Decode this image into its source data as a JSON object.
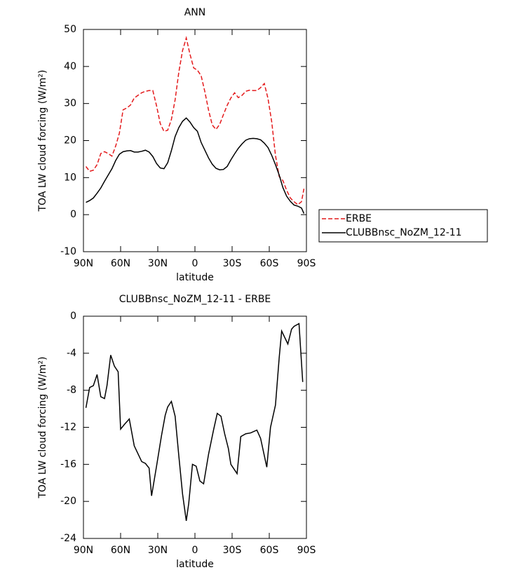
{
  "chart_data": [
    {
      "type": "line",
      "title": "ANN",
      "xlabel": "latitude",
      "ylabel": "TOA LW cloud forcing (W/m²)",
      "x": [
        88,
        85,
        82,
        79,
        76,
        73,
        70,
        67,
        64,
        61,
        58,
        55,
        52,
        49,
        46,
        43,
        40,
        37,
        34,
        31,
        28,
        25,
        22,
        19,
        16,
        13,
        10,
        7,
        4,
        1,
        -2,
        -5,
        -8,
        -11,
        -14,
        -17,
        -20,
        -23,
        -26,
        -29,
        -32,
        -35,
        -38,
        -41,
        -44,
        -47,
        -50,
        -53,
        -56,
        -59,
        -62,
        -65,
        -68,
        -71,
        -74,
        -77,
        -80,
        -83,
        -86,
        -88
      ],
      "series": [
        {
          "name": "ERBE",
          "color": "#e41a1c",
          "linestyle": "dashed",
          "values": [
            13,
            11.7,
            12,
            13.5,
            16.5,
            17,
            16.5,
            15.8,
            18.5,
            22,
            28.3,
            28.8,
            29.6,
            31.5,
            32.2,
            32.9,
            33.3,
            33.5,
            33.5,
            29.4,
            24.6,
            22.5,
            22.8,
            25.7,
            31,
            38.5,
            44.3,
            47.7,
            43.3,
            39.6,
            39,
            37.5,
            33.2,
            28.2,
            24.2,
            23,
            24.4,
            27,
            29.5,
            31.5,
            32.9,
            31.6,
            32.2,
            33.3,
            33.6,
            33.5,
            33.5,
            34.3,
            35.4,
            31.3,
            25,
            16,
            10.3,
            9.2,
            6.6,
            4.5,
            3.5,
            2.7,
            3.5,
            7
          ]
        },
        {
          "name": "CLUBBnsc_NoZM_12-11",
          "color": "#000000",
          "linestyle": "solid",
          "values": [
            3.3,
            3.8,
            4.5,
            5.8,
            7.2,
            9,
            10.7,
            12.4,
            14.6,
            16.3,
            17,
            17.2,
            17.3,
            16.9,
            16.9,
            17.1,
            17.4,
            16.9,
            15.7,
            13.8,
            12.6,
            12.4,
            14,
            17.3,
            21.1,
            23.5,
            25.2,
            26.1,
            25,
            23.5,
            22.5,
            19.5,
            17.4,
            15.3,
            13.6,
            12.5,
            12.1,
            12.2,
            13,
            14.8,
            16.4,
            17.9,
            19.1,
            20.1,
            20.5,
            20.6,
            20.5,
            20.2,
            19.3,
            18.1,
            16,
            13.5,
            10.7,
            7.3,
            5,
            3.6,
            2.6,
            2.3,
            1.8,
            0.3
          ]
        }
      ],
      "xlim": [
        90,
        -90
      ],
      "xticks": [
        {
          "value": 90,
          "label": "90N"
        },
        {
          "value": 60,
          "label": "60N"
        },
        {
          "value": 30,
          "label": "30N"
        },
        0,
        {
          "value": -30,
          "label": "30S"
        },
        {
          "value": -60,
          "label": "60S"
        },
        {
          "value": -90,
          "label": "90S"
        }
      ],
      "ylim": [
        -10,
        50
      ],
      "yticks": [
        -10,
        0,
        10,
        20,
        30,
        40,
        50
      ],
      "grid": false,
      "legend": "right"
    },
    {
      "type": "line",
      "title": "CLUBBnsc_NoZM_12-11 - ERBE",
      "xlabel": "latitude",
      "ylabel": "TOA LW cloud forcing (W/m²)",
      "x": [
        88,
        85,
        82,
        79,
        76,
        73,
        71,
        68,
        65,
        62,
        60,
        57,
        53,
        49,
        43,
        40,
        37,
        35,
        31,
        27,
        24,
        22,
        19,
        16,
        13,
        10,
        7,
        5,
        2,
        -1,
        -4,
        -7,
        -11,
        -15,
        -18,
        -21,
        -24,
        -27,
        -29,
        -34,
        -37,
        -41,
        -45,
        -50,
        -53,
        -58,
        -61,
        -65,
        -68,
        -70,
        -75,
        -78,
        -80,
        -84,
        -87
      ],
      "series": [
        {
          "name": null,
          "color": "#000000",
          "linestyle": "solid",
          "values": [
            -9.9,
            -7.7,
            -7.5,
            -6.3,
            -8.7,
            -8.9,
            -7.5,
            -4.2,
            -5.4,
            -6,
            -12.2,
            -11.7,
            -11.1,
            -14,
            -15.7,
            -15.9,
            -16.4,
            -19.4,
            -16.2,
            -12.9,
            -10.7,
            -9.8,
            -9.2,
            -10.8,
            -15.1,
            -19.2,
            -22.1,
            -20.2,
            -16,
            -16.2,
            -17.8,
            -18.1,
            -14.9,
            -12.3,
            -10.5,
            -10.8,
            -12.7,
            -14.3,
            -16,
            -17,
            -13,
            -12.7,
            -12.6,
            -12.3,
            -13.2,
            -16.3,
            -12,
            -9.6,
            -4.5,
            -1.6,
            -3,
            -1.4,
            -1.1,
            -0.8,
            -7.1
          ]
        }
      ],
      "xlim": [
        90,
        -90
      ],
      "xticks": [
        {
          "value": 90,
          "label": "90N"
        },
        {
          "value": 60,
          "label": "60N"
        },
        {
          "value": 30,
          "label": "30N"
        },
        0,
        {
          "value": -30,
          "label": "30S"
        },
        {
          "value": -60,
          "label": "60S"
        },
        {
          "value": -90,
          "label": "90S"
        }
      ],
      "ylim": [
        -24,
        0
      ],
      "yticks": [
        -24,
        -20,
        -16,
        -12,
        -8,
        -4,
        0
      ],
      "grid": false
    }
  ]
}
